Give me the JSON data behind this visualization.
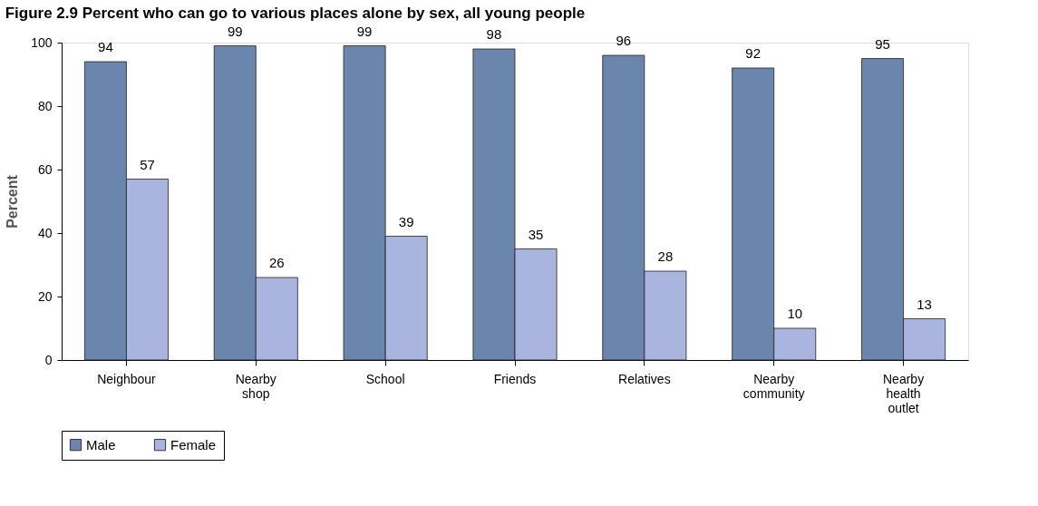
{
  "chart_data": {
    "type": "bar",
    "title": "Figure 2.9 Percent who can go to various places alone by sex, all young people",
    "ylabel": "Percent",
    "categories": [
      "Neighbour",
      "Nearby shop",
      "School",
      "Friends",
      "Relatives",
      "Nearby community",
      "Nearby health outlet"
    ],
    "series": [
      {
        "name": "Male",
        "color": "#6b86ad",
        "values": [
          94,
          99,
          99,
          98,
          96,
          92,
          95
        ]
      },
      {
        "name": "Female",
        "color": "#a9b5de",
        "values": [
          57,
          26,
          39,
          35,
          28,
          10,
          13
        ]
      }
    ],
    "ylim": [
      0,
      100
    ],
    "yticks": [
      0,
      20,
      40,
      60,
      80,
      100
    ],
    "grid": false,
    "legend": "bottom",
    "data_labels": true
  }
}
